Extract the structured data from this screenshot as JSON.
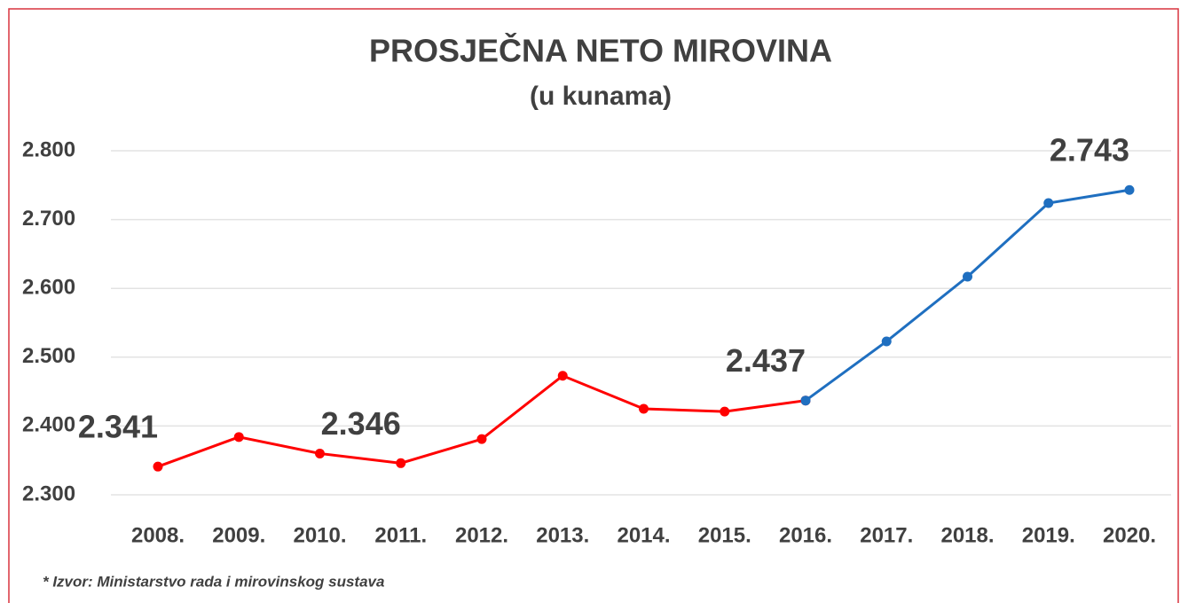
{
  "chart_data": {
    "type": "line",
    "title": "PROSJEČNA NETO MIROVINA",
    "subtitle": "(u kunama)",
    "source": "* Izvor: Ministarstvo rada i mirovinskog sustava",
    "categories": [
      "2008.",
      "2009.",
      "2010.",
      "2011.",
      "2012.",
      "2013.",
      "2014.",
      "2015.",
      "2016.",
      "2017.",
      "2018.",
      "2019.",
      "2020."
    ],
    "series": [
      {
        "color": "#ff0000",
        "values": [
          2341,
          2384,
          2360,
          2346,
          2381,
          2473,
          2425,
          2421,
          2437,
          null,
          null,
          null,
          null
        ],
        "value_labels": [
          "2.341",
          null,
          null,
          "2.346",
          null,
          null,
          null,
          null,
          "2.437",
          null,
          null,
          null,
          null
        ]
      },
      {
        "color": "#1f6fc0",
        "values": [
          null,
          null,
          null,
          null,
          null,
          null,
          null,
          null,
          2437,
          2523,
          2617,
          2724,
          2743
        ],
        "value_labels": [
          null,
          null,
          null,
          null,
          null,
          null,
          null,
          null,
          null,
          null,
          null,
          null,
          "2.743"
        ]
      }
    ],
    "ylim": [
      2300,
      2800
    ],
    "yticks": [
      {
        "value": 2300,
        "label": "2.300"
      },
      {
        "value": 2400,
        "label": "2.400"
      },
      {
        "value": 2500,
        "label": "2.500"
      },
      {
        "value": 2600,
        "label": "2.600"
      },
      {
        "value": 2700,
        "label": "2.700"
      },
      {
        "value": 2800,
        "label": "2.800"
      }
    ],
    "grid": true
  }
}
